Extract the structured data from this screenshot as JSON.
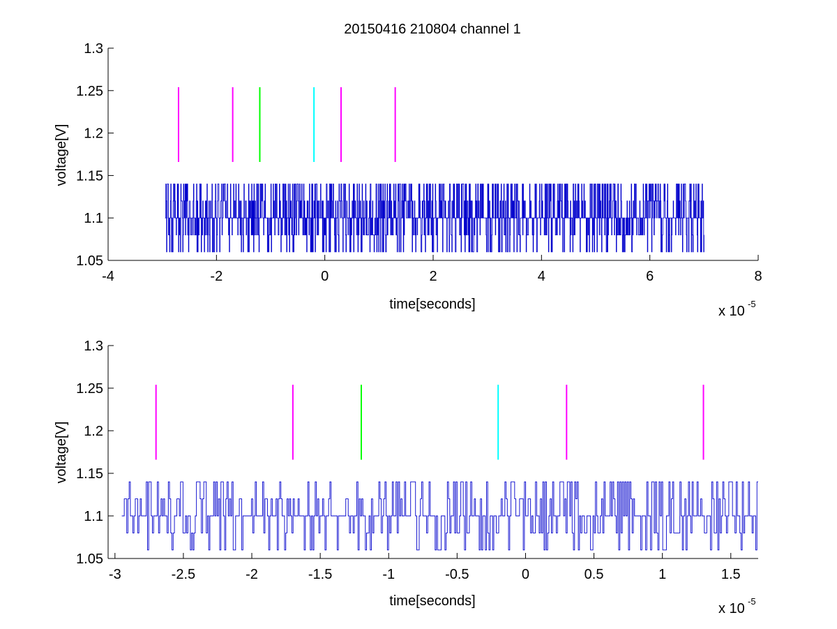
{
  "chart_data": [
    {
      "type": "line",
      "title": "20150416 210804 channel 1",
      "xlabel": "time[seconds]",
      "ylabel": "voltage[V]",
      "x_exponent": "x 10",
      "x_exponent_power": "-5",
      "xlim": [
        -4,
        8
      ],
      "ylim": [
        1.05,
        1.3
      ],
      "xticks": [
        "-4",
        "-2",
        "0",
        "2",
        "4",
        "6",
        "8"
      ],
      "yticks": [
        "1.05",
        "1.1",
        "1.15",
        "1.2",
        "1.25",
        "1.3"
      ],
      "grid": false,
      "signal": {
        "color": "#0000cc",
        "x_start": -2.95,
        "x_end": 7.0,
        "levels": [
          1.06,
          1.08,
          1.1,
          1.12,
          1.14
        ]
      },
      "markers": [
        {
          "x": -2.7,
          "y_range": [
            1.166,
            1.254
          ],
          "color": "#ff00ff"
        },
        {
          "x": -1.7,
          "y_range": [
            1.166,
            1.254
          ],
          "color": "#ff00ff"
        },
        {
          "x": -1.2,
          "y_range": [
            1.166,
            1.254
          ],
          "color": "#00ff00"
        },
        {
          "x": -0.2,
          "y_range": [
            1.166,
            1.254
          ],
          "color": "#00ffff"
        },
        {
          "x": 0.3,
          "y_range": [
            1.166,
            1.254
          ],
          "color": "#ff00ff"
        },
        {
          "x": 1.3,
          "y_range": [
            1.166,
            1.254
          ],
          "color": "#ff00ff"
        }
      ]
    },
    {
      "type": "line",
      "title": "",
      "xlabel": "time[seconds]",
      "ylabel": "voltage[V]",
      "x_exponent": "x 10",
      "x_exponent_power": "-5",
      "xlim": [
        -3.05,
        1.7
      ],
      "ylim": [
        1.05,
        1.3
      ],
      "xticks": [
        "-3",
        "-2.5",
        "-2",
        "-1.5",
        "-1",
        "-0.5",
        "0",
        "0.5",
        "1",
        "1.5"
      ],
      "xtick_values": [
        -3,
        -2.5,
        -2,
        -1.5,
        -1,
        -0.5,
        0,
        0.5,
        1,
        1.5
      ],
      "yticks": [
        "1.05",
        "1.1",
        "1.15",
        "1.2",
        "1.25",
        "1.3"
      ],
      "grid": false,
      "signal": {
        "color": "#0000cc",
        "x_start": -2.95,
        "x_end": 1.7,
        "levels": [
          1.06,
          1.08,
          1.1,
          1.12,
          1.14
        ]
      },
      "markers": [
        {
          "x": -2.7,
          "y_range": [
            1.166,
            1.254
          ],
          "color": "#ff00ff"
        },
        {
          "x": -1.7,
          "y_range": [
            1.166,
            1.254
          ],
          "color": "#ff00ff"
        },
        {
          "x": -1.2,
          "y_range": [
            1.166,
            1.254
          ],
          "color": "#00ff00"
        },
        {
          "x": -0.2,
          "y_range": [
            1.166,
            1.254
          ],
          "color": "#00ffff"
        },
        {
          "x": 0.3,
          "y_range": [
            1.166,
            1.254
          ],
          "color": "#ff00ff"
        },
        {
          "x": 1.3,
          "y_range": [
            1.166,
            1.254
          ],
          "color": "#ff00ff"
        }
      ]
    }
  ]
}
